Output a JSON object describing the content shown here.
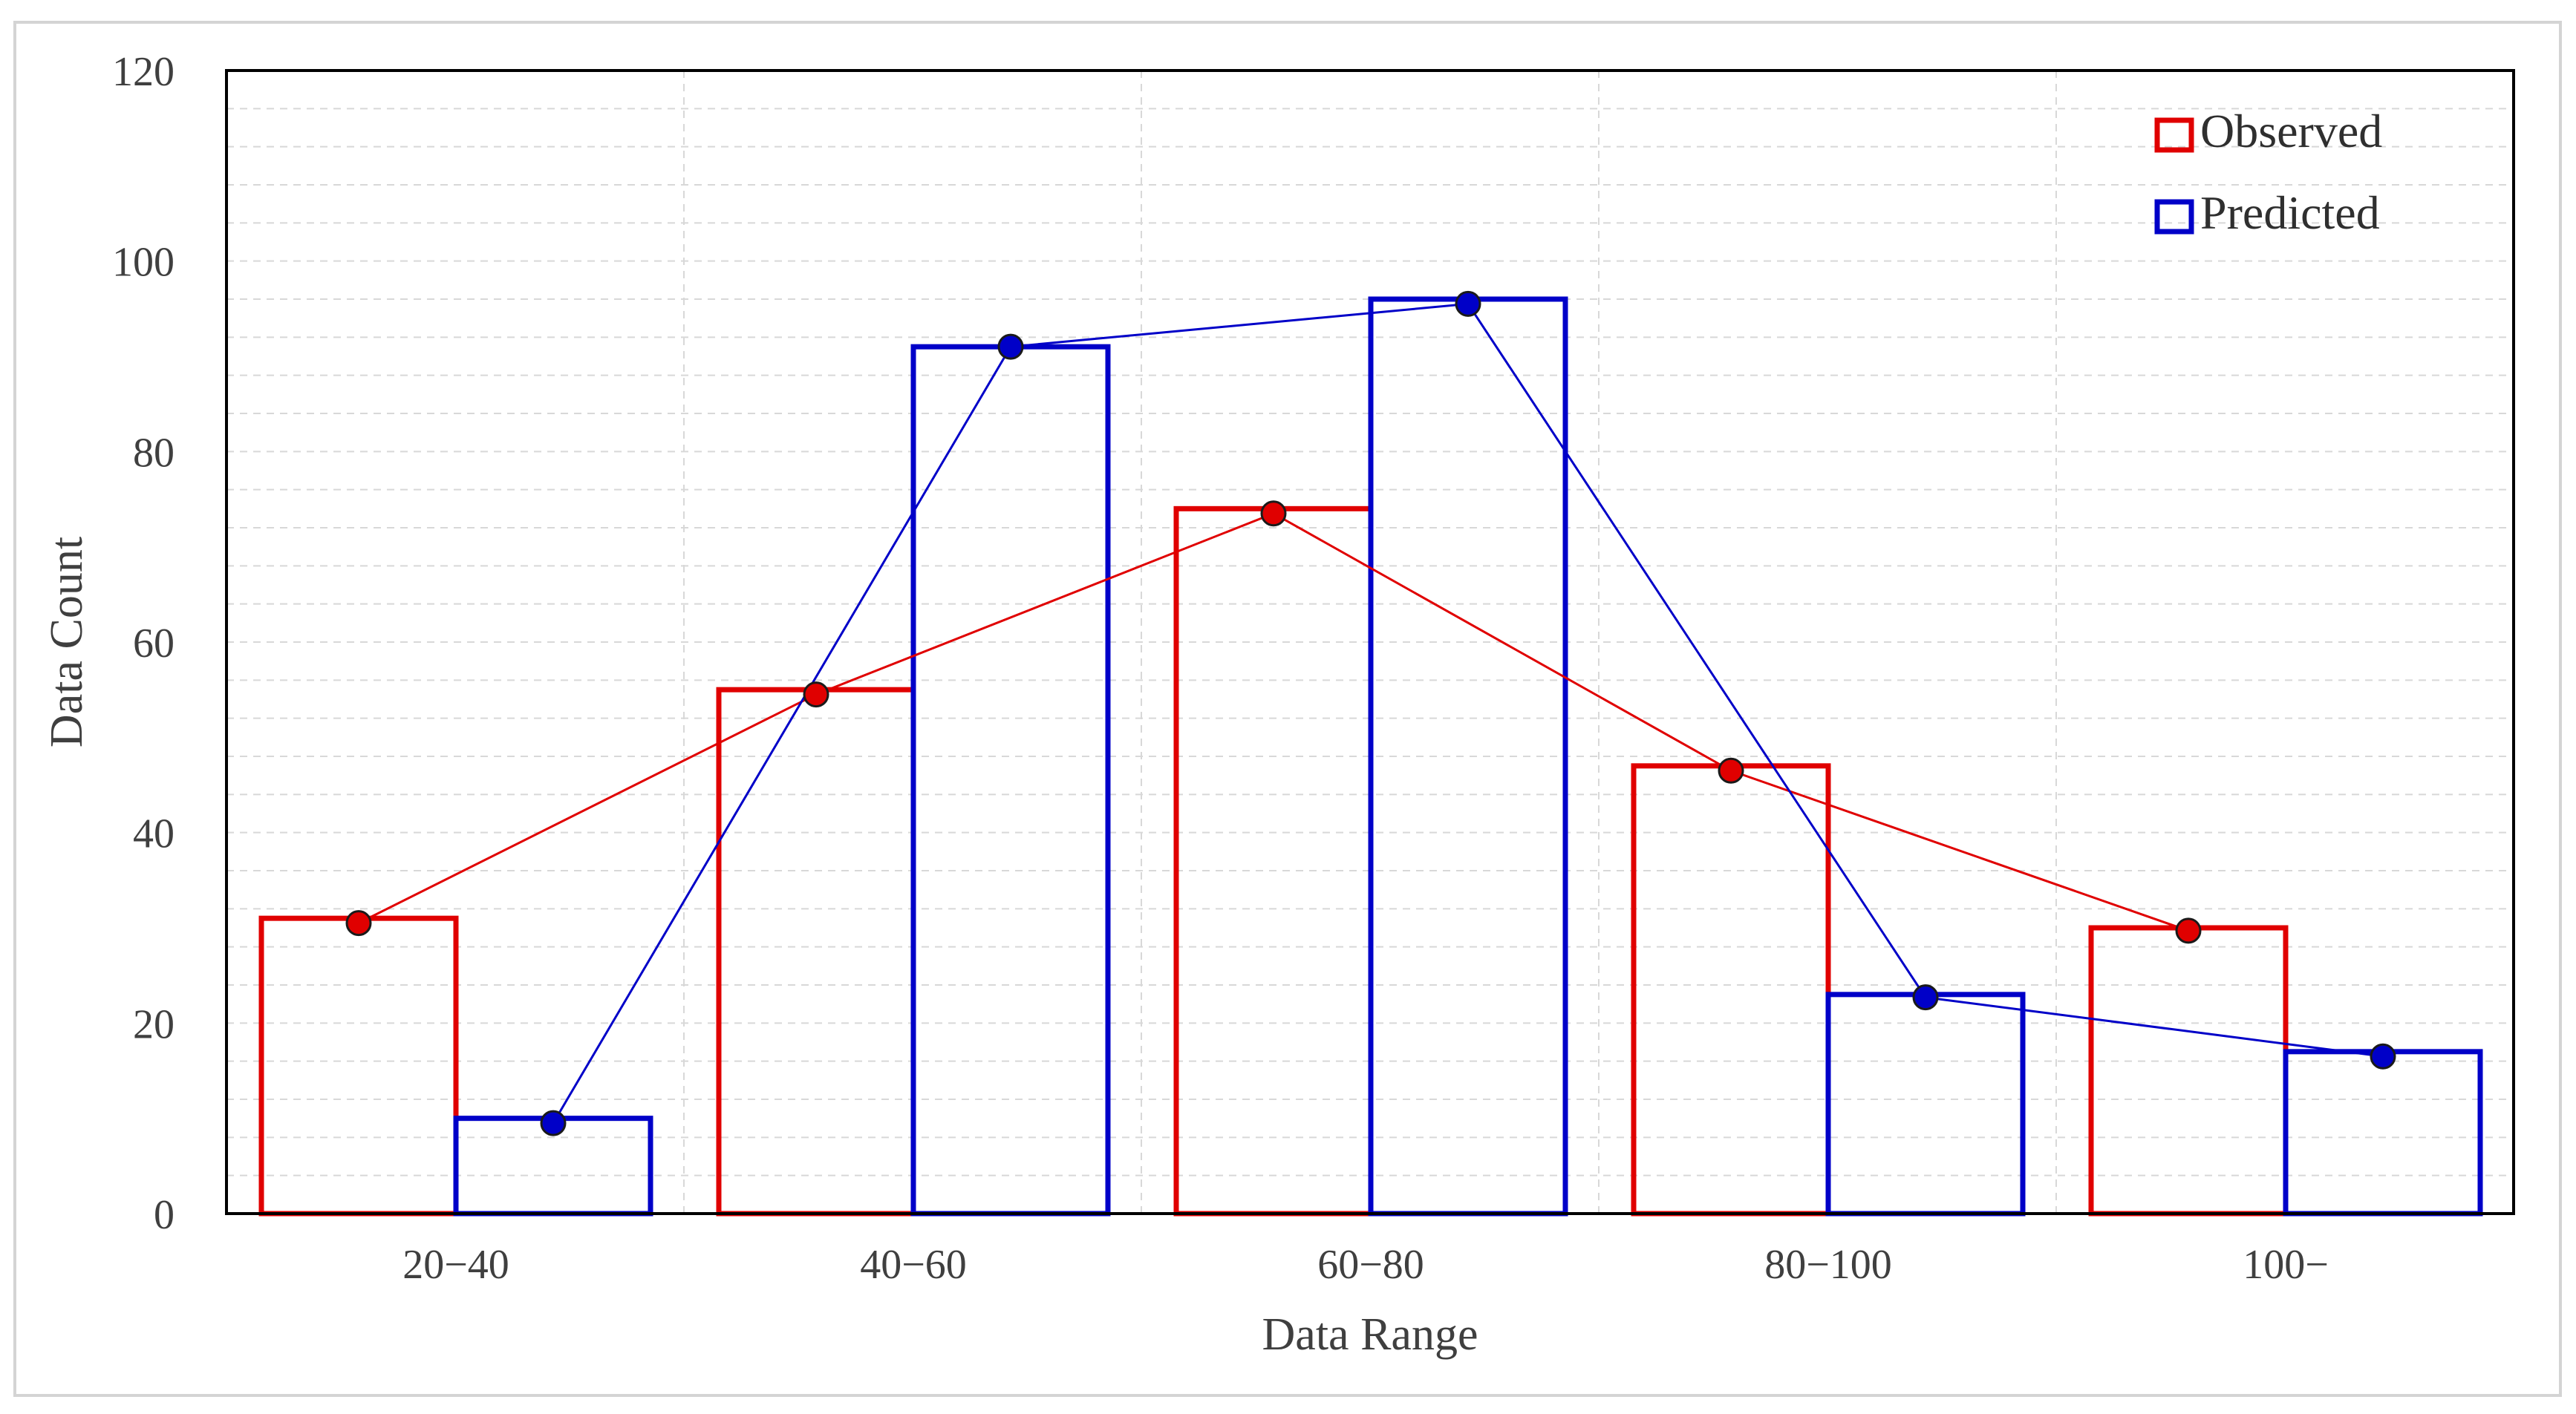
{
  "chart_data": {
    "type": "bar",
    "categories": [
      "20−40",
      "40−60",
      "60−80",
      "80−100",
      "100−"
    ],
    "series": [
      {
        "name": "Observed",
        "values": [
          31,
          55,
          74,
          47,
          30
        ],
        "color": "#e00000",
        "marker_values": [
          30.5,
          54.5,
          73.5,
          46.5,
          29.7
        ]
      },
      {
        "name": "Predicted",
        "values": [
          10,
          91,
          96,
          23,
          17
        ],
        "color": "#0000c8",
        "marker_values": [
          9.5,
          91,
          95.5,
          22.7,
          16.5
        ]
      }
    ],
    "xlabel": "Data Range",
    "ylabel": "Data Count",
    "ylim": [
      0,
      120
    ],
    "yticks": [
      0,
      20,
      40,
      60,
      80,
      100,
      120
    ],
    "grid": true,
    "legend_position": "top-right",
    "overlay": "line with circle markers connecting bar tops"
  }
}
